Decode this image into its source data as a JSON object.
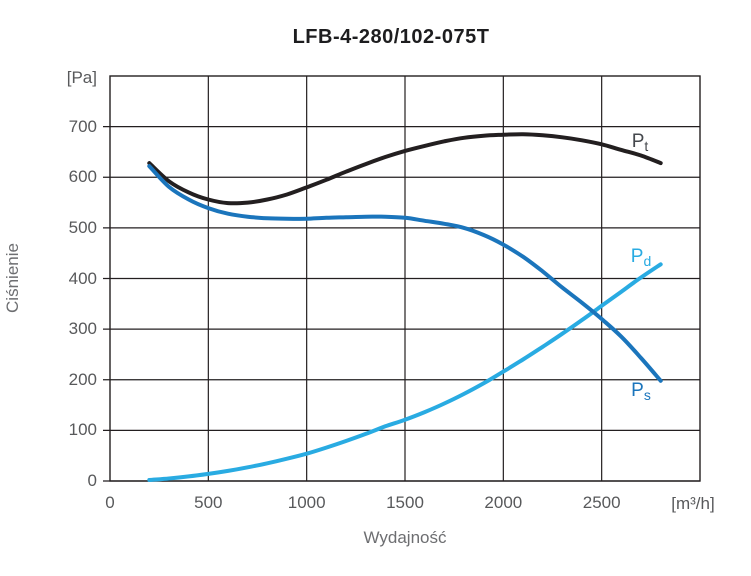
{
  "title": "LFB-4-280/102-075T",
  "axes": {
    "y_unit": "[Pa]",
    "y_title": "Ciśnienie",
    "x_title": "Wydajność",
    "x_unit": "[m³/h]"
  },
  "chart_data": {
    "type": "line",
    "title": "LFB-4-280/102-075T",
    "xlabel": "Wydajność [m³/h]",
    "ylabel": "Ciśnienie [Pa]",
    "xlim": [
      0,
      3000
    ],
    "ylim": [
      0,
      800
    ],
    "x_ticks": [
      0,
      500,
      1000,
      1500,
      2000,
      2500
    ],
    "y_ticks": [
      0,
      100,
      200,
      300,
      400,
      500,
      600,
      700
    ],
    "grid": true,
    "legend_position": "inline-curve-labels",
    "frame_color": "#231f20",
    "tick_label_color": "#58595b",
    "x": [
      200,
      300,
      400,
      500,
      600,
      700,
      800,
      900,
      1000,
      1100,
      1200,
      1300,
      1400,
      1500,
      1600,
      1700,
      1800,
      1900,
      2000,
      2100,
      2200,
      2300,
      2400,
      2500,
      2600,
      2700,
      2800
    ],
    "series": [
      {
        "name": "Pt",
        "label_main": "P",
        "label_sub": "t",
        "description": "total pressure curve",
        "color": "#231f20",
        "label_color": "#45484d",
        "label_x": 2695,
        "label_y": 672,
        "values": [
          628,
          592,
          570,
          556,
          549,
          550,
          556,
          566,
          580,
          595,
          611,
          626,
          640,
          652,
          662,
          671,
          678,
          682,
          684,
          685,
          683,
          679,
          673,
          665,
          654,
          643,
          628
        ]
      },
      {
        "name": "Pd",
        "label_main": "P",
        "label_sub": "d",
        "description": "dynamic pressure curve",
        "color": "#29abe2",
        "label_color": "#29abe2",
        "label_x": 2700,
        "label_y": 444,
        "values": [
          2,
          5,
          9,
          14,
          20,
          27,
          35,
          44,
          54,
          66,
          79,
          93,
          108,
          121,
          136,
          153,
          172,
          193,
          216,
          240,
          265,
          291,
          318,
          346,
          374,
          402,
          428
        ]
      },
      {
        "name": "Ps",
        "label_main": "P",
        "label_sub": "s",
        "description": "static pressure curve",
        "color": "#1b75bc",
        "label_color": "#1b75bc",
        "label_x": 2700,
        "label_y": 180,
        "values": [
          622,
          581,
          556,
          539,
          528,
          522,
          519,
          518,
          518,
          520,
          521,
          522,
          522,
          520,
          514,
          508,
          500,
          486,
          467,
          443,
          414,
          382,
          352,
          320,
          285,
          243,
          198
        ]
      }
    ]
  }
}
